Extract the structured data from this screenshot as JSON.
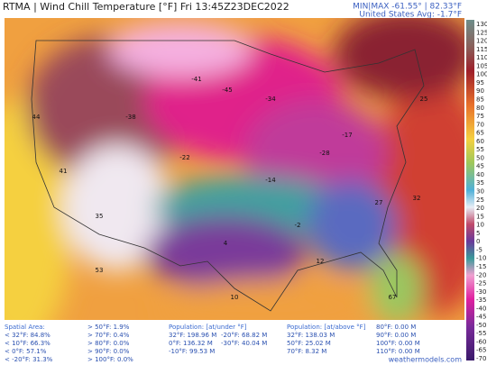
{
  "header": {
    "title": "RTMA | Wind Chill Temperature [°F]  Fri 13:45Z23DEC2022",
    "min_max": "MIN|MAX -61.55° | 82.33°F",
    "average": "United States Avg: -1.7°F"
  },
  "colorbar": {
    "ticks": [
      "130",
      "125",
      "120",
      "115",
      "110",
      "105",
      "100",
      "95",
      "90",
      "85",
      "80",
      "75",
      "70",
      "65",
      "60",
      "55",
      "50",
      "45",
      "40",
      "35",
      "30",
      "25",
      "20",
      "15",
      "10",
      "5",
      "0",
      "-5",
      "-10",
      "-15",
      "-20",
      "-25",
      "-30",
      "-35",
      "-40",
      "-45",
      "-50",
      "-55",
      "-60",
      "-65",
      "-70"
    ]
  },
  "stations": [
    {
      "label": "-41"
    },
    {
      "label": "-45"
    },
    {
      "label": "-34"
    },
    {
      "label": "-38"
    },
    {
      "label": "-28"
    },
    {
      "label": "-14"
    },
    {
      "label": "-2"
    },
    {
      "label": "10"
    },
    {
      "label": "12"
    },
    {
      "label": "27"
    },
    {
      "label": "32"
    },
    {
      "label": "35"
    },
    {
      "label": "41"
    },
    {
      "label": "44"
    },
    {
      "label": "53"
    },
    {
      "label": "67"
    },
    {
      "label": "4"
    },
    {
      "label": "-17"
    },
    {
      "label": "-22"
    },
    {
      "label": "25"
    }
  ],
  "stats": {
    "spatial": {
      "title": "Spatial Area:",
      "below": [
        "< 32°F: 84.8%",
        "< 10°F: 66.3%",
        "< 0°F: 57.1%",
        "< -20°F: 31.3%"
      ],
      "above": [
        "> 50°F: 1.9%",
        "> 70°F: 0.4%",
        "> 80°F: 0.0%",
        "> 90°F: 0.0%",
        "> 100°F: 0.0%"
      ]
    },
    "pop_under": {
      "title": "Population: [at/under °F]",
      "col1": [
        "32°F: 198.96 M",
        "0°F: 136.32 M",
        "-10°F: 99.53 M"
      ],
      "col2": [
        "-20°F: 68.82 M",
        "-30°F: 40.04 M"
      ]
    },
    "pop_above": {
      "title": "Population: [at/above °F]",
      "col1": [
        "32°F: 138.03 M",
        "50°F: 25.02 M",
        "70°F: 8.32 M"
      ],
      "col2": [
        "80°F: 0.00 M",
        "90°F: 0.00 M",
        "100°F: 0.00 M",
        "110°F: 0.00 M"
      ]
    }
  },
  "credit": "weathermodels.com"
}
